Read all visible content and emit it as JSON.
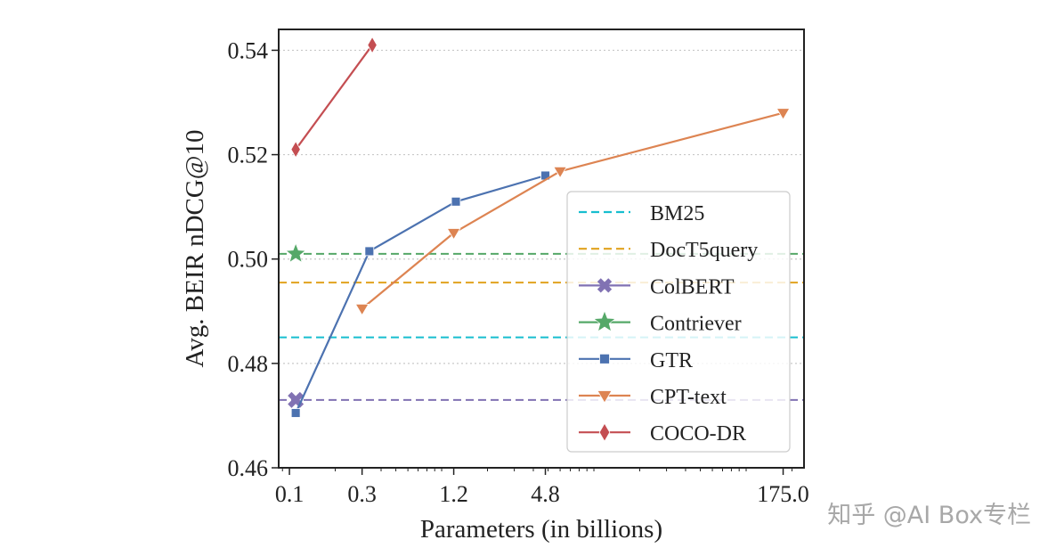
{
  "chart_data": {
    "type": "line",
    "title": "",
    "xlabel": "Parameters (in billions)",
    "ylabel": "Avg. BEIR nDCG@10",
    "xscale": "log",
    "xlim": [
      0.085,
      240
    ],
    "ylim": [
      0.46,
      0.544
    ],
    "xticks": [
      0.1,
      0.3,
      1.2,
      4.8,
      175.0
    ],
    "xtick_labels": [
      "0.1",
      "0.3",
      "1.2",
      "4.8",
      "175.0"
    ],
    "yticks": [
      0.46,
      0.48,
      0.5,
      0.52,
      0.54
    ],
    "ytick_labels": [
      "0.46",
      "0.48",
      "0.50",
      "0.52",
      "0.54"
    ],
    "grid": "horizontal dotted",
    "legend_position": "lower-right",
    "baselines": [
      {
        "name": "BM25",
        "value": 0.485,
        "color": "#17becf",
        "style": "dashed"
      },
      {
        "name": "DocT5query",
        "value": 0.4955,
        "color": "#e1a21e",
        "style": "dashed"
      },
      {
        "name": "ColBERT",
        "value": 0.473,
        "color": "#8172b3",
        "style": "dashed",
        "marker": "x",
        "marker_x": 0.11
      },
      {
        "name": "Contriever",
        "value": 0.501,
        "color": "#55a868",
        "style": "dashed",
        "marker": "star",
        "marker_x": 0.11
      }
    ],
    "series": [
      {
        "name": "GTR",
        "color": "#4c72b0",
        "marker": "square",
        "x": [
          0.11,
          0.335,
          1.24,
          4.8
        ],
        "y": [
          0.4705,
          0.5015,
          0.511,
          0.516
        ]
      },
      {
        "name": "CPT-text",
        "color": "#dd8452",
        "marker": "triangle-down",
        "x": [
          0.3,
          1.2,
          6.0,
          175.0
        ],
        "y": [
          0.4905,
          0.505,
          0.5168,
          0.528
        ]
      },
      {
        "name": "COCO-DR",
        "color": "#c44e52",
        "marker": "diamond",
        "x": [
          0.11,
          0.35
        ],
        "y": [
          0.521,
          0.541
        ]
      }
    ],
    "legend_order": [
      "BM25",
      "DocT5query",
      "ColBERT",
      "Contriever",
      "GTR",
      "CPT-text",
      "COCO-DR"
    ]
  },
  "watermark": "知乎 @AI Box专栏"
}
